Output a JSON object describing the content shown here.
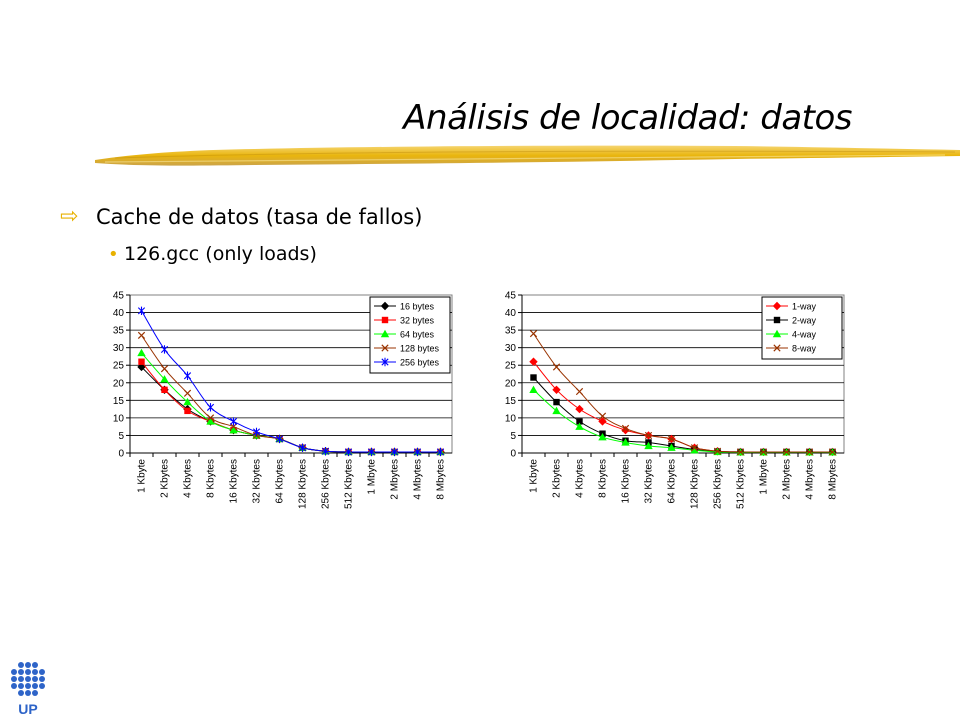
{
  "slide": {
    "title": "Análisis de localidad: datos",
    "bullet1": "Cache de datos (tasa de fallos)",
    "bullet2": "126.gcc (only loads)",
    "logo_text": "UP",
    "accent_color": "#E8B100"
  },
  "chart_data": [
    {
      "type": "line",
      "categories": [
        "1 Kbyte",
        "2 Kbytes",
        "4 Kbytes",
        "8 Kbytes",
        "16 Kbytes",
        "32 Kbytes",
        "64 Kbytes",
        "128 Kbytes",
        "256 Kbytes",
        "512 Kbytes",
        "1 Mbyte",
        "2 Mbytes",
        "4 Mbytes",
        "8 Mbytes"
      ],
      "ylim": [
        0,
        45
      ],
      "yticks": [
        0,
        5,
        10,
        15,
        20,
        25,
        30,
        35,
        40,
        45
      ],
      "grid": true,
      "legend_position": "top-right",
      "series": [
        {
          "name": "16 bytes",
          "color": "#000000",
          "marker": "diamond",
          "values": [
            24.5,
            18,
            12.5,
            9,
            6.5,
            5,
            4,
            1.5,
            0.5,
            0.3,
            0.3,
            0.3,
            0.3,
            0.3
          ]
        },
        {
          "name": "32 bytes",
          "color": "#FF0000",
          "marker": "square",
          "values": [
            26,
            18,
            12,
            9,
            6.5,
            5,
            4,
            1.5,
            0.5,
            0.3,
            0.3,
            0.3,
            0.3,
            0.3
          ]
        },
        {
          "name": "64 bytes",
          "color": "#00FF00",
          "marker": "triangle",
          "values": [
            28.5,
            21,
            14.5,
            9,
            6.5,
            5,
            4,
            1.5,
            0.5,
            0.3,
            0.3,
            0.3,
            0.3,
            0.3
          ]
        },
        {
          "name": "128 bytes",
          "color": "#993300",
          "marker": "x",
          "values": [
            33.5,
            24,
            17,
            10,
            7.5,
            5,
            4,
            1.5,
            0.5,
            0.3,
            0.3,
            0.3,
            0.3,
            0.3
          ]
        },
        {
          "name": "256 bytes",
          "color": "#0000FF",
          "marker": "star",
          "values": [
            40.5,
            29.5,
            22,
            13,
            9,
            6,
            4,
            1.5,
            0.5,
            0.3,
            0.3,
            0.3,
            0.3,
            0.3
          ]
        }
      ]
    },
    {
      "type": "line",
      "categories": [
        "1 Kbyte",
        "2 Kbytes",
        "4 Kbytes",
        "8 Kbytes",
        "16 Kbytes",
        "32 Kbytes",
        "64 Kbytes",
        "128 Kbytes",
        "256 Kbytes",
        "512 Kbytes",
        "1 Mbyte",
        "2 Mbytes",
        "4 Mbytes",
        "8 Mbytes"
      ],
      "ylim": [
        0,
        45
      ],
      "yticks": [
        0,
        5,
        10,
        15,
        20,
        25,
        30,
        35,
        40,
        45
      ],
      "grid": true,
      "legend_position": "top-right",
      "series": [
        {
          "name": "1-way",
          "color": "#FF0000",
          "marker": "diamond",
          "values": [
            26,
            18,
            12.5,
            9,
            6.5,
            5,
            4,
            1.5,
            0.5,
            0.3,
            0.3,
            0.3,
            0.3,
            0.3
          ]
        },
        {
          "name": "2-way",
          "color": "#000000",
          "marker": "square",
          "values": [
            21.5,
            14.5,
            9,
            5.5,
            3.5,
            3,
            2,
            1,
            0.4,
            0.3,
            0.3,
            0.3,
            0.3,
            0.3
          ]
        },
        {
          "name": "4-way",
          "color": "#00FF00",
          "marker": "triangle",
          "values": [
            18,
            12,
            7.5,
            4.5,
            3,
            2,
            1.5,
            0.8,
            0.3,
            0.2,
            0.2,
            0.2,
            0.2,
            0.2
          ]
        },
        {
          "name": "8-way",
          "color": "#993300",
          "marker": "x",
          "values": [
            34,
            24.5,
            17.5,
            10.5,
            7,
            5,
            4,
            1.5,
            0.5,
            0.3,
            0.3,
            0.3,
            0.3,
            0.3
          ]
        }
      ]
    }
  ]
}
